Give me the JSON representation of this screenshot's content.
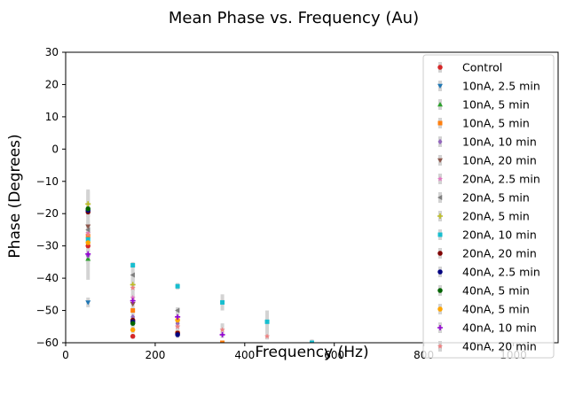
{
  "chart_data": {
    "type": "scatter",
    "title": "Mean Phase vs. Frequency (Au)",
    "xlabel": "Frequency (Hz)",
    "ylabel": "Phase (Degrees)",
    "xlim": [
      0,
      1100
    ],
    "ylim": [
      -60,
      30
    ],
    "xticks": [
      0,
      200,
      400,
      600,
      800,
      1000
    ],
    "yticks": [
      30,
      20,
      10,
      0,
      -10,
      -20,
      -30,
      -40,
      -50,
      -60
    ],
    "grid": false,
    "legend_position": "right",
    "errorbar_color": "#d3d3d3",
    "series": [
      {
        "name": "Control",
        "color": "#d62728",
        "marker": "circle",
        "points": [
          [
            50,
            -30,
            1.5
          ],
          [
            150,
            -58,
            0.8
          ]
        ]
      },
      {
        "name": "10nA, 2.5 min",
        "color": "#1f77b4",
        "marker": "triangle-down",
        "points": [
          [
            50,
            -47.5,
            1.5
          ]
        ]
      },
      {
        "name": "10nA, 5 min",
        "color": "#2ca02c",
        "marker": "triangle-up",
        "points": [
          [
            50,
            -34,
            1.5
          ]
        ]
      },
      {
        "name": "10nA, 5 min",
        "color": "#ff7f0e",
        "marker": "square",
        "points": [
          [
            50,
            -27,
            1.5
          ],
          [
            150,
            -50,
            1
          ],
          [
            250,
            -57,
            1
          ],
          [
            350,
            -60,
            0.5
          ]
        ]
      },
      {
        "name": "10nA, 10 min",
        "color": "#9467bd",
        "marker": "diamond",
        "points": [
          [
            50,
            -33,
            1.5
          ],
          [
            150,
            -52,
            1
          ],
          [
            250,
            -54,
            1
          ]
        ]
      },
      {
        "name": "10nA, 20 min",
        "color": "#8c564b",
        "marker": "triangle-down",
        "points": [
          [
            50,
            -24,
            2
          ],
          [
            150,
            -48,
            1
          ]
        ]
      },
      {
        "name": "20nA, 2.5 min",
        "color": "#e377c2",
        "marker": "star",
        "points": [
          [
            50,
            -26,
            2
          ],
          [
            150,
            -46,
            1
          ],
          [
            250,
            -55,
            1
          ]
        ]
      },
      {
        "name": "20nA, 5 min",
        "color": "#7f7f7f",
        "marker": "triangle-left",
        "points": [
          [
            50,
            -25,
            2
          ],
          [
            150,
            -39,
            2
          ],
          [
            250,
            -50,
            1
          ]
        ]
      },
      {
        "name": "20nA, 5 min",
        "color": "#bcbd22",
        "marker": "plus",
        "points": [
          [
            50,
            -17,
            4
          ],
          [
            150,
            -42,
            2
          ]
        ]
      },
      {
        "name": "20nA, 10 min",
        "color": "#17becf",
        "marker": "square",
        "points": [
          [
            50,
            -28,
            2
          ],
          [
            150,
            -36,
            1
          ],
          [
            250,
            -42.5,
            1
          ],
          [
            350,
            -47.5,
            2.5
          ],
          [
            450,
            -53.5,
            3.5
          ],
          [
            550,
            -60,
            1
          ]
        ]
      },
      {
        "name": "20nA, 20 min",
        "color": "#800000",
        "marker": "circle",
        "points": [
          [
            50,
            -19.5,
            1.5
          ],
          [
            150,
            -53,
            1
          ],
          [
            250,
            -57,
            1
          ]
        ]
      },
      {
        "name": "40nA, 2.5 min",
        "color": "#000080",
        "marker": "circle",
        "points": [
          [
            50,
            -19,
            1.5
          ],
          [
            150,
            -53.5,
            1
          ],
          [
            250,
            -57.5,
            1
          ]
        ]
      },
      {
        "name": "40nA, 5 min",
        "color": "#006400",
        "marker": "circle",
        "points": [
          [
            50,
            -18.5,
            1.5
          ],
          [
            150,
            -54,
            1
          ]
        ]
      },
      {
        "name": "40nA, 5 min",
        "color": "#ffa500",
        "marker": "circle",
        "points": [
          [
            50,
            -29,
            1.5
          ],
          [
            150,
            -56,
            1
          ],
          [
            250,
            -53,
            1
          ]
        ]
      },
      {
        "name": "40nA, 10 min",
        "color": "#9400d3",
        "marker": "plus",
        "points": [
          [
            50,
            -32.5,
            1.5
          ],
          [
            150,
            -47,
            1
          ],
          [
            250,
            -52,
            1
          ],
          [
            350,
            -57.5,
            1
          ]
        ]
      },
      {
        "name": "40nA, 20 min",
        "color": "#f08080",
        "marker": "star",
        "points": [
          [
            50,
            -26.5,
            14
          ],
          [
            150,
            -43,
            4
          ],
          [
            250,
            -55,
            3
          ],
          [
            350,
            -56,
            2
          ],
          [
            450,
            -58,
            1
          ]
        ]
      }
    ]
  }
}
